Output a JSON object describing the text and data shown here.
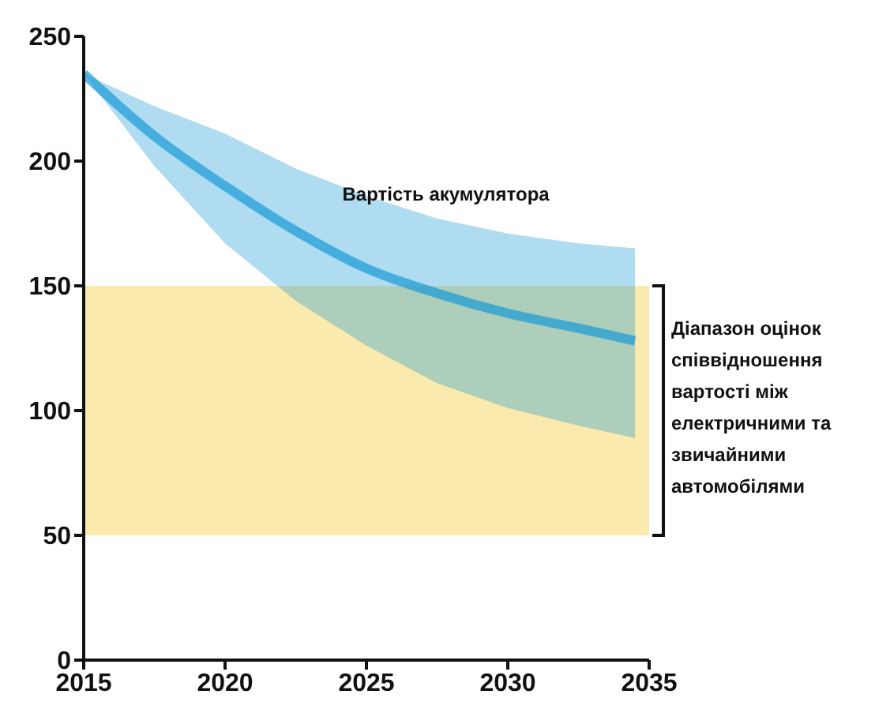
{
  "chart_data": {
    "type": "line",
    "x": [
      2015,
      2017.5,
      2020,
      2022.5,
      2025,
      2027.5,
      2030,
      2032.5,
      2034.5
    ],
    "series": [
      {
        "name": "Вартість акумулятора",
        "color": "#1a9ad6",
        "values": [
          235,
          210,
          190,
          172,
          157,
          147,
          139,
          133,
          128
        ],
        "lower": [
          235,
          198,
          167,
          144,
          126,
          111,
          101,
          94,
          89
        ],
        "upper": [
          235,
          222,
          211,
          197,
          186,
          177,
          171,
          167,
          165
        ]
      }
    ],
    "bands": [
      {
        "axis": "y",
        "from": 50,
        "to": 150,
        "label": "Діапазон оцінок співвідношення вартості між електричними та звичайними автомобілями",
        "color": "#f7d96a"
      }
    ],
    "xlim": [
      2015,
      2035
    ],
    "xticks": [
      2015,
      2020,
      2025,
      2030,
      2035
    ],
    "ylim": [
      0,
      250
    ],
    "yticks": [
      0,
      50,
      100,
      150,
      200,
      250
    ],
    "grid": false,
    "legend": false,
    "marker": "none",
    "line_style": "solid"
  }
}
